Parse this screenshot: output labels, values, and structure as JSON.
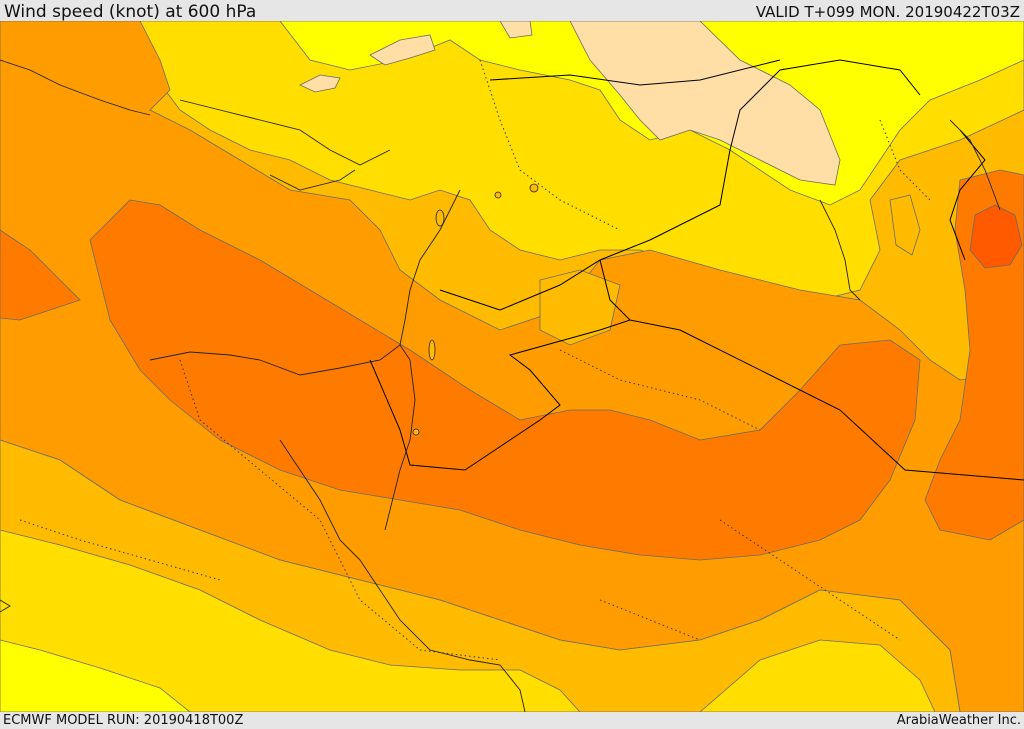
{
  "header": {
    "title": "Wind speed (knot) at 600 hPa",
    "valid": "VALID T+099 MON. 20190422T03Z"
  },
  "footer": {
    "model_run": "ECMWF MODEL RUN: 20190418T00Z",
    "credit": "ArabiaWeather Inc."
  },
  "map": {
    "parameter": "wind speed",
    "unit": "knot",
    "level": "600 hPa",
    "shading_colors": {
      "lowest": "#ffdfa6",
      "light_yellow": "#ffff00",
      "yellow": "#ffde00",
      "amber": "#ffbb00",
      "orange": "#ff9c00",
      "dark_orange": "#ff7b00",
      "red_orange": "#ff5a00"
    },
    "contour_color": "#6b6b6b",
    "border_color": "#000000"
  }
}
